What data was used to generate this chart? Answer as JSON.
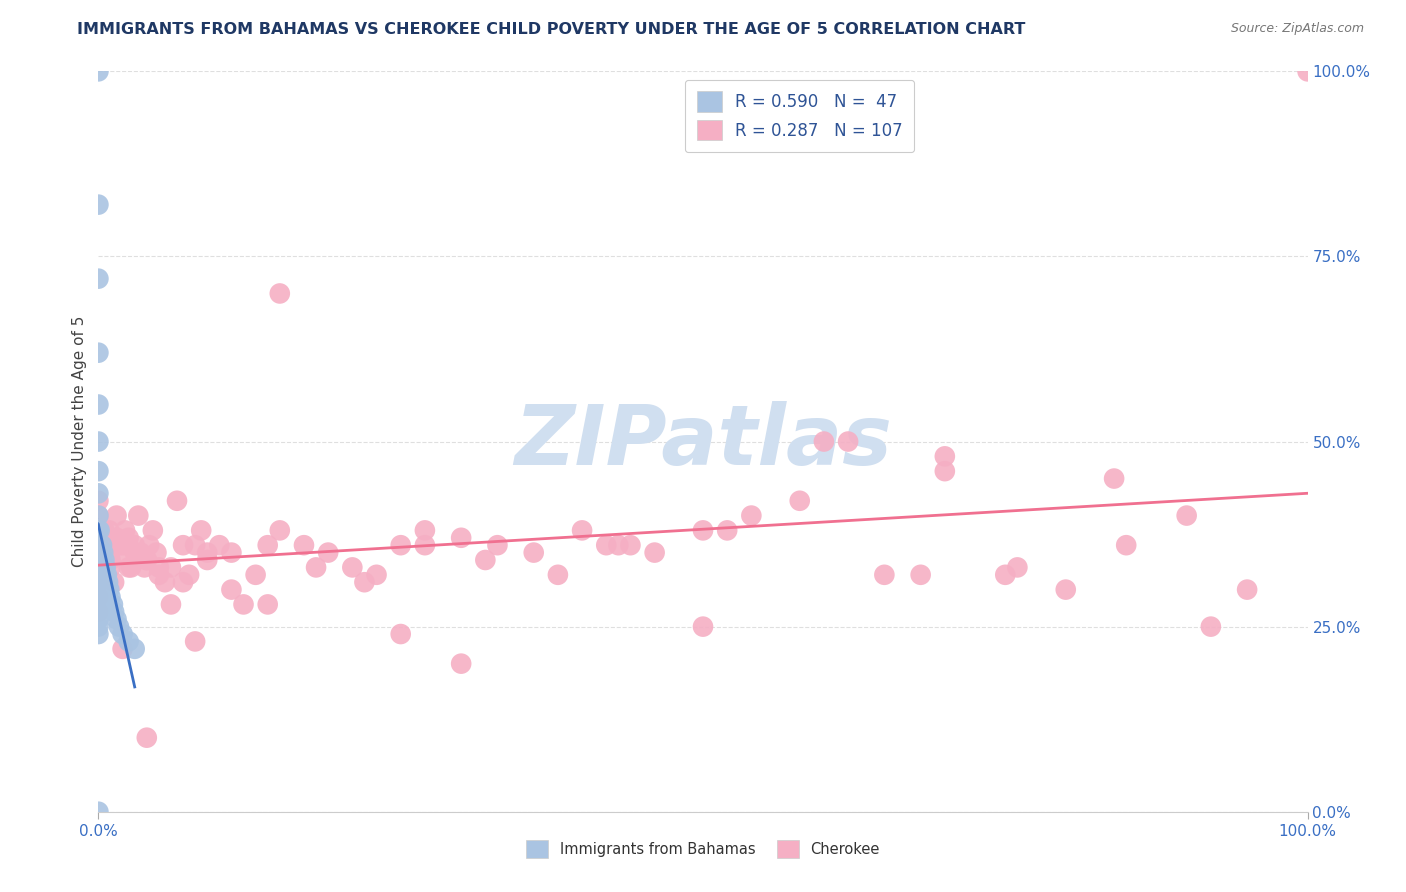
{
  "title": "IMMIGRANTS FROM BAHAMAS VS CHEROKEE CHILD POVERTY UNDER THE AGE OF 5 CORRELATION CHART",
  "source": "Source: ZipAtlas.com",
  "ylabel": "Child Poverty Under the Age of 5",
  "r_blue": 0.59,
  "n_blue": 47,
  "r_pink": 0.287,
  "n_pink": 107,
  "blue_scatter_color": "#aac4e2",
  "pink_scatter_color": "#f5afc4",
  "blue_line_color": "#3a6fc4",
  "pink_line_color": "#f07090",
  "tick_color": "#3a6fc4",
  "title_color": "#1f3864",
  "legend_text_color": "#2f5496",
  "watermark_color": "#d0dff0",
  "background_color": "#ffffff",
  "grid_color": "#d8d8d8",
  "blue_x": [
    0.0,
    0.0,
    0.0,
    0.0,
    0.0,
    0.0,
    0.0,
    0.0,
    0.0,
    0.0,
    0.0,
    0.0,
    0.0,
    0.0,
    0.0,
    0.0,
    0.0,
    0.0,
    0.0,
    0.0,
    0.0,
    0.0,
    0.0,
    0.0,
    0.0,
    0.0,
    0.0,
    0.001,
    0.001,
    0.002,
    0.003,
    0.003,
    0.004,
    0.005,
    0.006,
    0.007,
    0.008,
    0.009,
    0.01,
    0.012,
    0.013,
    0.015,
    0.017,
    0.02,
    0.025,
    0.03,
    0.0
  ],
  "blue_y": [
    1.0,
    0.82,
    0.72,
    0.62,
    0.55,
    0.5,
    0.46,
    0.43,
    0.4,
    0.38,
    0.36,
    0.35,
    0.34,
    0.33,
    0.32,
    0.31,
    0.3,
    0.29,
    0.28,
    0.27,
    0.26,
    0.25,
    0.24,
    0.35,
    0.33,
    0.31,
    0.3,
    0.38,
    0.35,
    0.34,
    0.36,
    0.33,
    0.35,
    0.34,
    0.33,
    0.32,
    0.31,
    0.3,
    0.29,
    0.28,
    0.27,
    0.26,
    0.25,
    0.24,
    0.23,
    0.22,
    0.0
  ],
  "pink_x": [
    0.0,
    0.0,
    0.0,
    0.0,
    0.0,
    0.0,
    0.005,
    0.007,
    0.009,
    0.01,
    0.012,
    0.013,
    0.015,
    0.017,
    0.02,
    0.022,
    0.025,
    0.027,
    0.03,
    0.033,
    0.035,
    0.038,
    0.04,
    0.042,
    0.045,
    0.048,
    0.05,
    0.055,
    0.06,
    0.065,
    0.07,
    0.075,
    0.08,
    0.085,
    0.09,
    0.1,
    0.11,
    0.12,
    0.13,
    0.14,
    0.15,
    0.17,
    0.19,
    0.21,
    0.23,
    0.25,
    0.27,
    0.3,
    0.33,
    0.36,
    0.4,
    0.43,
    0.46,
    0.5,
    0.54,
    0.58,
    0.62,
    0.65,
    0.7,
    0.75,
    0.8,
    0.85,
    0.9,
    0.95,
    1.0,
    0.0,
    0.0,
    0.0,
    0.005,
    0.008,
    0.01,
    0.015,
    0.02,
    0.025,
    0.03,
    0.04,
    0.05,
    0.06,
    0.07,
    0.09,
    0.11,
    0.14,
    0.18,
    0.22,
    0.27,
    0.32,
    0.38,
    0.44,
    0.52,
    0.6,
    0.68,
    0.76,
    0.84,
    0.92,
    0.5,
    0.3,
    0.15,
    0.08,
    0.04,
    0.02,
    0.7,
    0.42,
    0.25
  ],
  "pink_y": [
    0.42,
    0.4,
    0.38,
    0.37,
    0.35,
    0.33,
    0.38,
    0.35,
    0.38,
    0.34,
    0.36,
    0.31,
    0.4,
    0.36,
    0.35,
    0.38,
    0.37,
    0.33,
    0.36,
    0.4,
    0.35,
    0.33,
    0.34,
    0.36,
    0.38,
    0.35,
    0.33,
    0.31,
    0.28,
    0.42,
    0.36,
    0.32,
    0.36,
    0.38,
    0.35,
    0.36,
    0.35,
    0.28,
    0.32,
    0.36,
    0.38,
    0.36,
    0.35,
    0.33,
    0.32,
    0.36,
    0.38,
    0.37,
    0.36,
    0.35,
    0.38,
    0.36,
    0.35,
    0.38,
    0.4,
    0.42,
    0.5,
    0.32,
    0.46,
    0.32,
    0.3,
    0.36,
    0.4,
    0.3,
    1.0,
    0.31,
    0.29,
    0.27,
    0.37,
    0.34,
    0.33,
    0.37,
    0.36,
    0.33,
    0.35,
    0.34,
    0.32,
    0.33,
    0.31,
    0.34,
    0.3,
    0.28,
    0.33,
    0.31,
    0.36,
    0.34,
    0.32,
    0.36,
    0.38,
    0.5,
    0.32,
    0.33,
    0.45,
    0.25,
    0.25,
    0.2,
    0.7,
    0.23,
    0.1,
    0.22,
    0.48,
    0.36,
    0.24
  ]
}
